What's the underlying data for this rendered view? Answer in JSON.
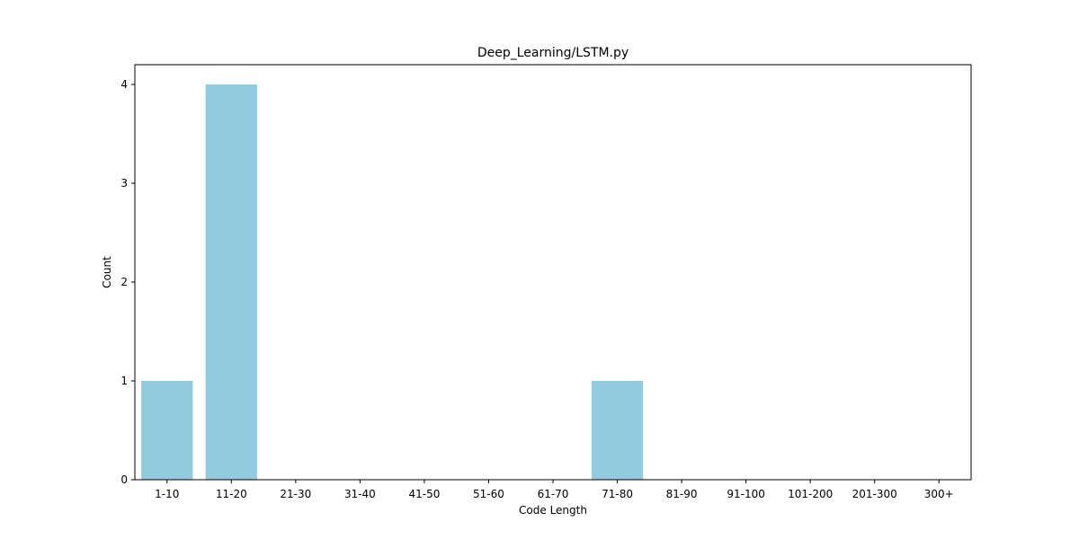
{
  "chart_data": {
    "type": "bar",
    "title": "Deep_Learning/LSTM.py",
    "xlabel": "Code Length",
    "ylabel": "Count",
    "categories": [
      "1-10",
      "11-20",
      "21-30",
      "31-40",
      "41-50",
      "51-60",
      "61-70",
      "71-80",
      "81-90",
      "91-100",
      "101-200",
      "201-300",
      "300+"
    ],
    "values": [
      1,
      4,
      0,
      0,
      0,
      0,
      0,
      1,
      0,
      0,
      0,
      0,
      0
    ],
    "y_ticks": [
      0,
      1,
      2,
      3,
      4
    ],
    "y_tick_labels": [
      "0",
      "1",
      "2",
      "3",
      "4"
    ],
    "ylim": [
      0,
      4.2
    ],
    "bar_color": "#92cadf",
    "grid": false,
    "legend": "none"
  }
}
